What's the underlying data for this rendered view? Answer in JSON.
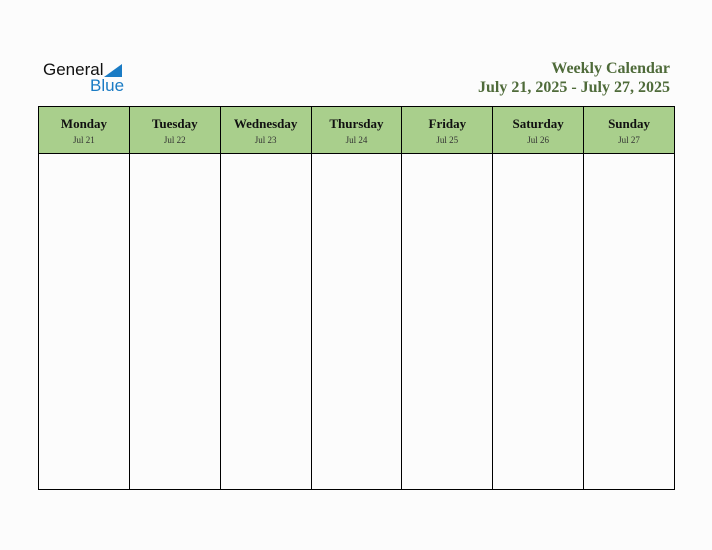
{
  "logo": {
    "line1": "General",
    "line2": "Blue"
  },
  "header": {
    "title": "Weekly Calendar",
    "range": "July 21, 2025 - July 27, 2025"
  },
  "days": [
    {
      "name": "Monday",
      "date": "Jul 21"
    },
    {
      "name": "Tuesday",
      "date": "Jul 22"
    },
    {
      "name": "Wednesday",
      "date": "Jul 23"
    },
    {
      "name": "Thursday",
      "date": "Jul 24"
    },
    {
      "name": "Friday",
      "date": "Jul 25"
    },
    {
      "name": "Saturday",
      "date": "Jul 26"
    },
    {
      "name": "Sunday",
      "date": "Jul 27"
    }
  ],
  "colors": {
    "header_fill": "#a9cf8c",
    "title": "#4f6b3a",
    "logo_blue": "#1a7bc4"
  }
}
